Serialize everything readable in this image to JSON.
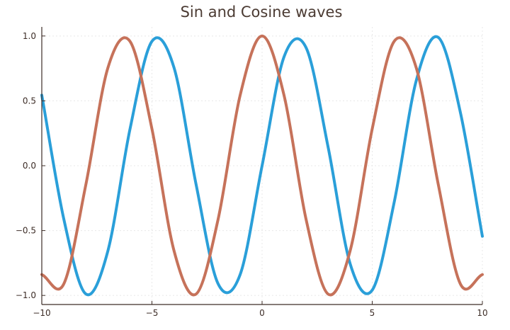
{
  "chart_data": {
    "type": "line",
    "title": "Sin and Cosine waves",
    "xlabel": "",
    "ylabel": "",
    "xlim": [
      -10,
      10
    ],
    "ylim": [
      -1.07,
      1.07
    ],
    "xticks": [
      -10,
      -5,
      0,
      5,
      10
    ],
    "xtick_labels": [
      "−10",
      "−5",
      "0",
      "5",
      "10"
    ],
    "yticks": [
      -1.0,
      -0.5,
      0.0,
      0.5,
      1.0
    ],
    "ytick_labels": [
      "−1.0",
      "−0.5",
      "0.0",
      "0.5",
      "1.0"
    ],
    "grid": true,
    "legend": "none",
    "x": [
      -10,
      -9,
      -8,
      -7,
      -6,
      -5,
      -4,
      -3,
      -2,
      -1,
      0,
      1,
      2,
      3,
      4,
      5,
      6,
      7,
      8,
      9,
      10
    ],
    "series": [
      {
        "color": "#2a9fd9",
        "values": [
          0.544,
          -0.412,
          -0.989,
          -0.657,
          0.279,
          0.959,
          0.757,
          -0.141,
          -0.909,
          -0.841,
          0.0,
          0.841,
          0.909,
          0.141,
          -0.757,
          -0.959,
          -0.279,
          0.657,
          0.989,
          0.412,
          -0.544
        ]
      },
      {
        "color": "#c6725a",
        "values": [
          -0.839,
          -0.911,
          -0.146,
          0.754,
          0.96,
          0.284,
          -0.654,
          -0.99,
          -0.416,
          0.54,
          1.0,
          0.54,
          -0.416,
          -0.99,
          -0.654,
          0.284,
          0.96,
          0.754,
          -0.146,
          -0.911,
          -0.839
        ]
      }
    ]
  }
}
